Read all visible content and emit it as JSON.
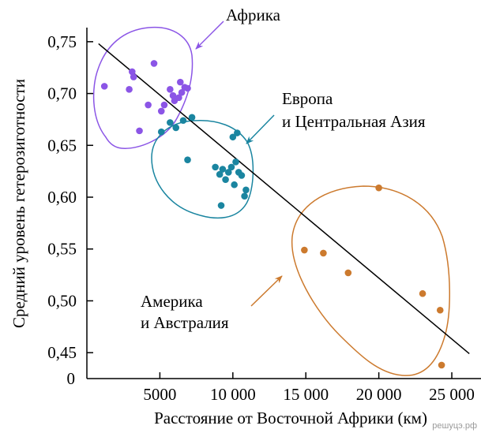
{
  "chart_data": {
    "type": "scatter",
    "xlabel": "Расстояние от Восточной Африки (км)",
    "ylabel": "Средний уровень гетерозиготности",
    "xlim": [
      0,
      27000
    ],
    "ylim": [
      0.425,
      0.775
    ],
    "x_ticks": [
      {
        "value": 5000,
        "label": "5000"
      },
      {
        "value": 10000,
        "label": "10 000"
      },
      {
        "value": 15000,
        "label": "15 000"
      },
      {
        "value": 20000,
        "label": "20 000"
      },
      {
        "value": 25000,
        "label": "25 000"
      }
    ],
    "y_ticks": [
      {
        "value": 0.75,
        "label": "0,75"
      },
      {
        "value": 0.7,
        "label": "0,70"
      },
      {
        "value": 0.65,
        "label": "0,65"
      },
      {
        "value": 0.6,
        "label": "0,60"
      },
      {
        "value": 0.55,
        "label": "0,55"
      },
      {
        "value": 0.5,
        "label": "0,50"
      },
      {
        "value": 0.45,
        "label": "0,45"
      }
    ],
    "y_origin_label": "0",
    "grid": false,
    "series": [
      {
        "name": "Африка",
        "color": "#8b55e6",
        "points": [
          [
            1200,
            0.707
          ],
          [
            2900,
            0.704
          ],
          [
            3100,
            0.721
          ],
          [
            3200,
            0.716
          ],
          [
            3600,
            0.664
          ],
          [
            4200,
            0.689
          ],
          [
            4600,
            0.729
          ],
          [
            5100,
            0.683
          ],
          [
            5300,
            0.689
          ],
          [
            5700,
            0.704
          ],
          [
            5900,
            0.698
          ],
          [
            6000,
            0.693
          ],
          [
            6300,
            0.696
          ],
          [
            6400,
            0.711
          ],
          [
            6500,
            0.701
          ],
          [
            6700,
            0.706
          ],
          [
            6900,
            0.705
          ]
        ]
      },
      {
        "name": "Европа и Центральная Азия",
        "color": "#1a85a0",
        "points": [
          [
            5100,
            0.663
          ],
          [
            5700,
            0.672
          ],
          [
            6100,
            0.667
          ],
          [
            6600,
            0.674
          ],
          [
            6900,
            0.636
          ],
          [
            7200,
            0.677
          ],
          [
            8800,
            0.629
          ],
          [
            9100,
            0.622
          ],
          [
            9200,
            0.592
          ],
          [
            9300,
            0.627
          ],
          [
            9500,
            0.617
          ],
          [
            9700,
            0.624
          ],
          [
            9900,
            0.629
          ],
          [
            10000,
            0.658
          ],
          [
            10100,
            0.612
          ],
          [
            10200,
            0.634
          ],
          [
            10300,
            0.662
          ],
          [
            10400,
            0.624
          ],
          [
            10600,
            0.621
          ],
          [
            10800,
            0.601
          ],
          [
            10900,
            0.607
          ]
        ]
      },
      {
        "name": "Америка и Австралия",
        "color": "#cc7a2e",
        "points": [
          [
            14900,
            0.549
          ],
          [
            16200,
            0.546
          ],
          [
            17900,
            0.527
          ],
          [
            20000,
            0.609
          ],
          [
            23000,
            0.507
          ],
          [
            24200,
            0.491
          ],
          [
            24300,
            0.438
          ]
        ]
      }
    ],
    "trendline": {
      "x": [
        800,
        26200
      ],
      "y": [
        0.748,
        0.449
      ]
    },
    "annotations": {
      "africa": "Африка",
      "europe_line1": "Европа",
      "europe_line2": "и Центральная Азия",
      "america_line1": "Америка",
      "america_line2": "и Австралия"
    }
  },
  "watermark": "решуцэ.рф"
}
